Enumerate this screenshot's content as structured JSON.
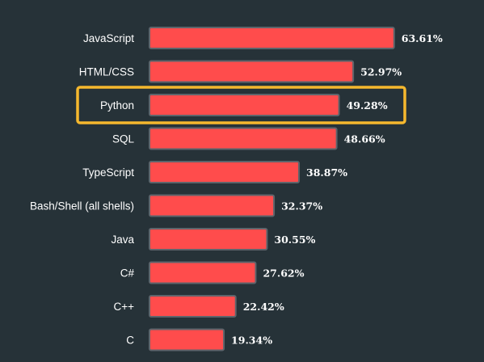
{
  "colors": {
    "background": "#263238",
    "bar_fill": "#ff4c4c",
    "bar_border": "#5e646b",
    "highlight_border": "#f5b82e",
    "text": "#ffffff"
  },
  "highlighted_category": "Python",
  "chart_data": {
    "type": "bar",
    "orientation": "horizontal",
    "title": "",
    "xlabel": "",
    "ylabel": "",
    "value_unit": "%",
    "xlim": [
      0,
      100
    ],
    "grid": false,
    "legend": "none",
    "categories": [
      "JavaScript",
      "HTML/CSS",
      "Python",
      "SQL",
      "TypeScript",
      "Bash/Shell (all shells)",
      "Java",
      "C#",
      "C++",
      "C"
    ],
    "values": [
      63.61,
      52.97,
      49.28,
      48.66,
      38.87,
      32.37,
      30.55,
      27.62,
      22.42,
      19.34
    ],
    "value_labels": [
      "63.61%",
      "52.97%",
      "49.28%",
      "48.66%",
      "38.87%",
      "32.37%",
      "30.55%",
      "27.62%",
      "22.42%",
      "19.34%"
    ]
  }
}
